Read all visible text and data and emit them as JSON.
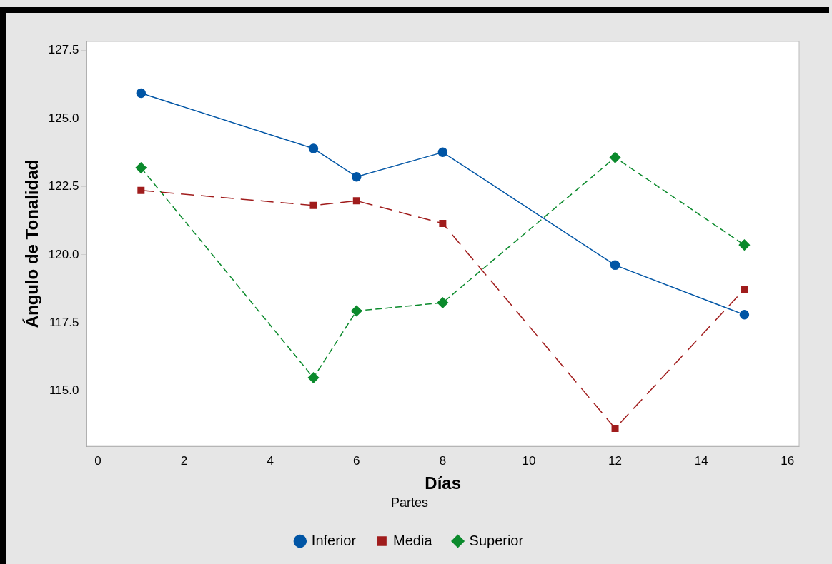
{
  "chart_data": {
    "type": "line",
    "xlabel": "Días",
    "ylabel": "Ángulo de Tonalidad",
    "legend_title": "Partes",
    "legend": "bottom",
    "grid": false,
    "x": [
      1,
      5,
      6,
      8,
      12,
      15
    ],
    "xlim": [
      -0.26,
      16.27
    ],
    "xticks": [
      0,
      2,
      4,
      6,
      8,
      10,
      12,
      14,
      16
    ],
    "ylim": [
      112.97,
      127.83
    ],
    "yticks": [
      {
        "value": 115,
        "label": "115.0"
      },
      {
        "value": 117.5,
        "label": "117.5"
      },
      {
        "value": 120,
        "label": "120.0"
      },
      {
        "value": 122.5,
        "label": "122.5"
      },
      {
        "value": 125,
        "label": "125.0"
      },
      {
        "value": 127.5,
        "label": "127.5"
      }
    ],
    "series": [
      {
        "name": "Inferior",
        "color": "#0055a5",
        "marker": "circle",
        "line_style": "solid",
        "values": [
          125.93,
          123.9,
          122.86,
          123.76,
          119.62,
          117.8
        ]
      },
      {
        "name": "Media",
        "color": "#a01c1c",
        "marker": "square",
        "line_style": "dashed",
        "values": [
          122.36,
          121.81,
          121.98,
          121.15,
          113.63,
          118.74
        ]
      },
      {
        "name": "Superior",
        "color": "#0b8a2c",
        "marker": "diamond",
        "line_style": "dashed",
        "values": [
          123.19,
          115.49,
          117.94,
          118.24,
          123.57,
          120.36
        ]
      }
    ]
  }
}
